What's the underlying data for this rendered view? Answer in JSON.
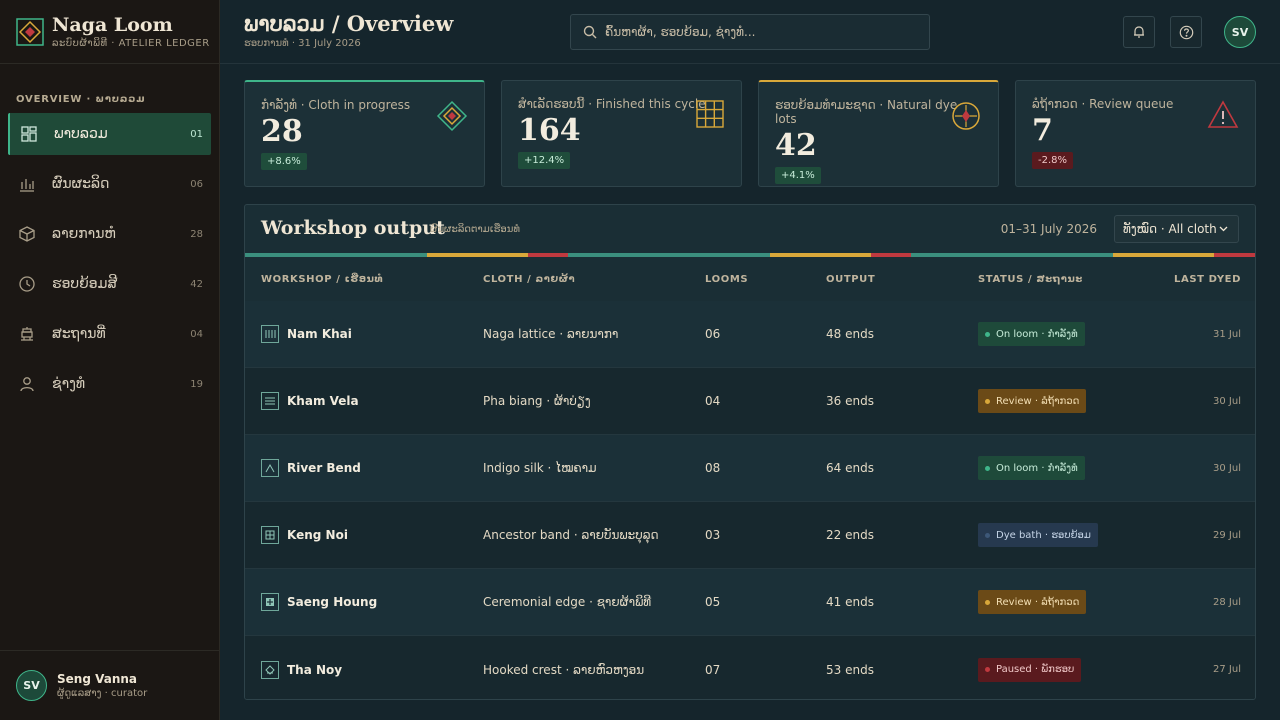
{
  "brand": {
    "name": "Naga Loom",
    "subtitle": "ລະບົບຜ້າພິທີ · ATELIER LEDGER"
  },
  "nav": {
    "section": "OVERVIEW · ພາບລວມ",
    "items": [
      {
        "label": "ພາບລວມ",
        "count": "01",
        "icon": "dashboard-icon",
        "active": true
      },
      {
        "label": "ຜົນຜະລິດ",
        "count": "06",
        "icon": "bar-chart-icon"
      },
      {
        "label": "ລາຍການຫໍ",
        "count": "28",
        "icon": "box-icon"
      },
      {
        "label": "ຮອບຍ້ອມສີ",
        "count": "42",
        "icon": "clock-icon"
      },
      {
        "label": "ສະຖານທີ່",
        "count": "04",
        "icon": "temple-icon"
      },
      {
        "label": "ຊ່າງທໍ",
        "count": "19",
        "icon": "person-icon"
      }
    ]
  },
  "user": {
    "initials": "SV",
    "name": "Seng Vanna",
    "role": "ຜູ້ດູແລສາງ · curator"
  },
  "header": {
    "title": "ພາບລວມ / Overview",
    "subtitle": "ຮອບການທໍ · 31 July 2026",
    "search_placeholder": "ຄົ້ນຫາຜ້າ, ຮອບຍ້ອມ, ຊ່າງທໍ...",
    "avatar_initials": "SV"
  },
  "stats": [
    {
      "label": "ກໍາລັງທໍ · Cloth in progress",
      "value": "28",
      "delta": "+8.6%",
      "trend": "up",
      "icon": "diamond-icon",
      "accent": "#3fb58a"
    },
    {
      "label": "ສໍາເລັດຮອບນີ້ · Finished this cycle",
      "value": "164",
      "delta": "+12.4%",
      "trend": "up",
      "icon": "grid-icon",
      "accent": null
    },
    {
      "label": "ຮອບຍ້ອມທໍາມະຊາດ · Natural dye lots",
      "value": "42",
      "delta": "+4.1%",
      "trend": "up",
      "icon": "compass-icon",
      "accent": "#d9a83a"
    },
    {
      "label": "ລໍຖ້າກວດ · Review queue",
      "value": "7",
      "delta": "-2.8%",
      "trend": "down",
      "icon": "warning-icon",
      "accent": null
    }
  ],
  "panel": {
    "title": "Workshop output",
    "subtitle": "ຜົນຜະລິດຕາມເຮືອນທໍ",
    "range": "01–31 July 2026",
    "filter": "ທັງໝົດ · All cloth"
  },
  "table": {
    "headers": [
      "WORKSHOP / ເຮືອນທໍ",
      "CLOTH / ລາຍຜ້າ",
      "LOOMS",
      "OUTPUT",
      "STATUS / ສະຖານະ",
      "LAST DYED"
    ],
    "rows": [
      {
        "workshop": "Nam Khai",
        "icon": "loom-bars-icon",
        "cloth": "Naga lattice · ລາຍນາກາ",
        "looms": "06",
        "output": "48 ends",
        "status": "On loom · ກໍາລັງທໍ",
        "status_type": "green",
        "last": "31 Jul"
      },
      {
        "workshop": "Kham Vela",
        "icon": "lines-icon",
        "cloth": "Pha biang · ຜ້າບ່ຽງ",
        "looms": "04",
        "output": "36 ends",
        "status": "Review · ລໍຖ້າກວດ",
        "status_type": "amber",
        "last": "30 Jul"
      },
      {
        "workshop": "River Bend",
        "icon": "peak-icon",
        "cloth": "Indigo silk · ໄໝຄາມ",
        "looms": "08",
        "output": "64 ends",
        "status": "On loom · ກໍາລັງທໍ",
        "status_type": "green",
        "last": "30 Jul"
      },
      {
        "workshop": "Keng Noi",
        "icon": "cross-grid-icon",
        "cloth": "Ancestor band · ລາຍບັນພະບຸລຸດ",
        "looms": "03",
        "output": "22 ends",
        "status": "Dye bath · ຮອບຍ້ອມ",
        "status_type": "blue",
        "last": "29 Jul"
      },
      {
        "workshop": "Saeng Houng",
        "icon": "plus-box-icon",
        "cloth": "Ceremonial edge · ຊາຍຜ້າພິທີ",
        "looms": "05",
        "output": "41 ends",
        "status": "Review · ລໍຖ້າກວດ",
        "status_type": "amber",
        "last": "28 Jul"
      },
      {
        "workshop": "Tha Noy",
        "icon": "hook-icon",
        "cloth": "Hooked crest · ລາຍຫົວຫງອນ",
        "looms": "07",
        "output": "53 ends",
        "status": "Paused · ພັກຮອບ",
        "status_type": "red",
        "last": "27 Jul"
      }
    ]
  },
  "colors": {
    "green": "#3fb58a",
    "amber": "#d9a83a",
    "red": "#c0393f",
    "panel": "#1a2e35",
    "sidebar": "#1b1714"
  }
}
